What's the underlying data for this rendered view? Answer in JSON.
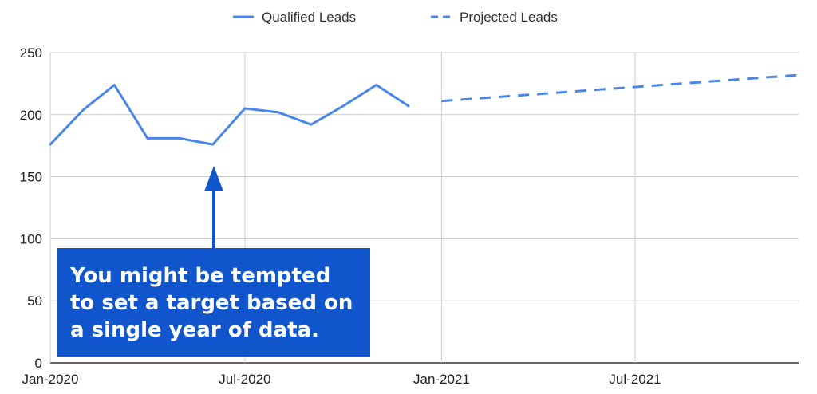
{
  "chart_data": {
    "type": "line",
    "x": [
      "2020-01",
      "2020-02",
      "2020-03",
      "2020-04",
      "2020-05",
      "2020-06",
      "2020-07",
      "2020-08",
      "2020-09",
      "2020-10",
      "2020-11",
      "2020-12",
      "2021-01",
      "2021-12"
    ],
    "x_ticks": [
      "Jan-2020",
      "Jul-2020",
      "Jan-2021",
      "Jul-2021"
    ],
    "y_ticks": [
      "0",
      "50",
      "100",
      "150",
      "200",
      "250"
    ],
    "ylim": [
      0,
      250
    ],
    "grid": true,
    "legend_position": "top-center",
    "series": [
      {
        "name": "Qualified Leads",
        "style": "solid",
        "color": "#4a86e8",
        "points": [
          {
            "x": "2020-01",
            "y": 176
          },
          {
            "x": "2020-02",
            "y": 204
          },
          {
            "x": "2020-03",
            "y": 224
          },
          {
            "x": "2020-04",
            "y": 181
          },
          {
            "x": "2020-05",
            "y": 181
          },
          {
            "x": "2020-06",
            "y": 176
          },
          {
            "x": "2020-07",
            "y": 205
          },
          {
            "x": "2020-08",
            "y": 202
          },
          {
            "x": "2020-09",
            "y": 192
          },
          {
            "x": "2020-10",
            "y": 207
          },
          {
            "x": "2020-11",
            "y": 224
          },
          {
            "x": "2020-12",
            "y": 207
          }
        ]
      },
      {
        "name": "Projected Leads",
        "style": "dashed",
        "color": "#4a86e8",
        "points": [
          {
            "x": "2021-01",
            "y": 211
          },
          {
            "x": "2021-12",
            "y": 232
          }
        ]
      }
    ],
    "annotation": {
      "lines": [
        "You might be tempted",
        "to set a target based on",
        "a single year of data."
      ],
      "background": "#1155cc",
      "arrow_color": "#1155cc"
    }
  }
}
